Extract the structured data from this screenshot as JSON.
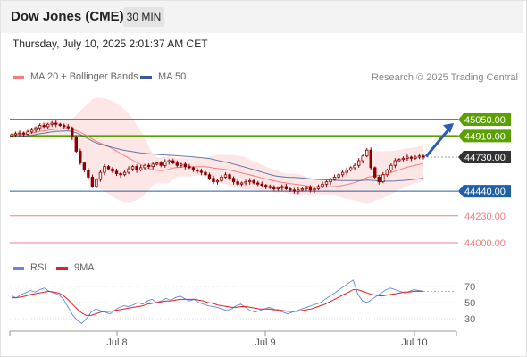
{
  "header": {
    "title": "Dow Jones (CME)",
    "interval": "30 MIN",
    "datetime": "Thursday, July 10, 2025 2:01:37 AM CET"
  },
  "legend": {
    "ma20_label": "MA 20 + Bollinger Bands",
    "ma50_label": "MA 50",
    "research": "Research © 2025 Trading Central"
  },
  "rsi_legend": {
    "rsi_label": "RSI",
    "ma_label": "9MA"
  },
  "colors": {
    "ma20": "#f08080",
    "ma50": "#3b5998",
    "bollinger_fill": "#fde2e2",
    "candle": "#8b0000",
    "resistance": "#5aa000",
    "pivot": "#1f5fa8",
    "support": "#f08080",
    "current": "#333333",
    "arrow": "#2a5db0",
    "rsi": "#6688dd",
    "rsi_ma": "#dd2222"
  },
  "chart_data": {
    "type": "candlestick",
    "instrument": "Dow Jones (CME)",
    "interval": "30 MIN",
    "x_ticks": [
      "Jul 8",
      "Jul 9",
      "Jul 10"
    ],
    "y_range": [
      43850,
      45300
    ],
    "levels": [
      {
        "value": 45050.0,
        "label": "45050.00",
        "kind": "resistance"
      },
      {
        "value": 44910.0,
        "label": "44910.00",
        "kind": "resistance"
      },
      {
        "value": 44730.0,
        "label": "44730.00",
        "kind": "current"
      },
      {
        "value": 44440.0,
        "label": "44440.00",
        "kind": "pivot"
      },
      {
        "value": 44230.0,
        "label": "44230.00",
        "kind": "support"
      },
      {
        "value": 44000.0,
        "label": "44000.00",
        "kind": "support"
      }
    ],
    "close_series": [
      44920,
      44930,
      44935,
      44925,
      44945,
      44960,
      44980,
      45000,
      44990,
      45010,
      45020,
      45010,
      45000,
      44990,
      44980,
      44900,
      44780,
      44680,
      44620,
      44560,
      44480,
      44540,
      44600,
      44650,
      44630,
      44610,
      44590,
      44580,
      44600,
      44630,
      44650,
      44620,
      44640,
      44660,
      44650,
      44670,
      44680,
      44660,
      44690,
      44700,
      44680,
      44660,
      44670,
      44650,
      44640,
      44620,
      44610,
      44600,
      44580,
      44550,
      44520,
      44530,
      44560,
      44580,
      44550,
      44520,
      44500,
      44510,
      44520,
      44530,
      44510,
      44500,
      44490,
      44480,
      44470,
      44460,
      44470,
      44480,
      44460,
      44450,
      44440,
      44450,
      44460,
      44470,
      44450,
      44460,
      44480,
      44500,
      44520,
      44540,
      44560,
      44580,
      44600,
      44620,
      44640,
      44660,
      44700,
      44740,
      44790,
      44640,
      44560,
      44520,
      44580,
      44620,
      44660,
      44700,
      44710,
      44720,
      44730,
      44720,
      44730,
      44740,
      44730
    ],
    "rsi": {
      "y_ticks": [
        70,
        50,
        30
      ],
      "values": [
        58,
        56,
        60,
        62,
        65,
        63,
        66,
        68,
        64,
        62,
        60,
        55,
        45,
        35,
        28,
        24,
        30,
        38,
        42,
        40,
        38,
        36,
        40,
        44,
        46,
        45,
        47,
        50,
        48,
        52,
        54,
        50,
        52,
        55,
        53,
        56,
        58,
        55,
        52,
        54,
        50,
        48,
        46,
        45,
        44,
        42,
        40,
        42,
        46,
        48,
        44,
        40,
        38,
        40,
        42,
        44,
        42,
        40,
        38,
        36,
        38,
        40,
        42,
        44,
        46,
        48,
        50,
        54,
        58,
        62,
        66,
        70,
        74,
        78,
        60,
        52,
        50,
        54,
        58,
        62,
        66,
        68,
        66,
        64,
        62,
        64,
        66,
        65,
        64
      ],
      "ma_values": [
        56,
        56,
        57,
        58,
        60,
        61,
        62,
        63,
        64,
        63,
        62,
        59,
        54,
        48,
        42,
        37,
        34,
        34,
        36,
        38,
        39,
        39,
        40,
        41,
        42,
        43,
        44,
        45,
        46,
        48,
        49,
        50,
        51,
        52,
        52,
        53,
        54,
        54,
        54,
        54,
        53,
        52,
        50,
        49,
        47,
        46,
        45,
        44,
        44,
        45,
        45,
        44,
        43,
        42,
        42,
        42,
        41,
        41,
        40,
        39,
        39,
        39,
        40,
        41,
        42,
        44,
        46,
        48,
        51,
        54,
        57,
        60,
        63,
        66,
        66,
        64,
        62,
        60,
        59,
        58,
        59,
        60,
        61,
        62,
        63,
        63,
        64,
        64,
        64
      ]
    }
  }
}
